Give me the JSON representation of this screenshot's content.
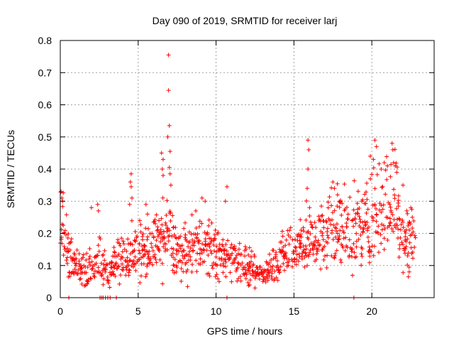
{
  "chart_data": {
    "type": "scatter",
    "title": "Day 090 of 2019, SRMTID for receiver larj",
    "xlabel": "GPS time / hours",
    "ylabel": "SRMTID / TECUs",
    "xlim": [
      0,
      24
    ],
    "ylim": [
      0,
      0.8
    ],
    "xticks": [
      0,
      5,
      10,
      15,
      20
    ],
    "xtick_labels": [
      "0",
      "5",
      "10",
      "15",
      "20"
    ],
    "yticks": [
      0,
      0.1,
      0.2,
      0.3,
      0.4,
      0.5,
      0.6,
      0.7,
      0.8
    ],
    "ytick_labels": [
      "0",
      "0.1",
      "0.2",
      "0.3",
      "0.4",
      "0.5",
      "0.6",
      "0.7",
      "0.8"
    ],
    "grid": true,
    "marker": "+",
    "color": "#ff0000",
    "x_step": 0.04,
    "series": [
      {
        "name": "SRMTID",
        "trend": [
          [
            0.0,
            0.26
          ],
          [
            0.3,
            0.2
          ],
          [
            0.6,
            0.13
          ],
          [
            1.0,
            0.1
          ],
          [
            1.5,
            0.09
          ],
          [
            2.0,
            0.09
          ],
          [
            2.5,
            0.12
          ],
          [
            3.0,
            0.08
          ],
          [
            3.5,
            0.1
          ],
          [
            4.0,
            0.12
          ],
          [
            4.5,
            0.15
          ],
          [
            5.0,
            0.14
          ],
          [
            6.0,
            0.16
          ],
          [
            6.5,
            0.19
          ],
          [
            7.0,
            0.2
          ],
          [
            7.5,
            0.14
          ],
          [
            8.0,
            0.14
          ],
          [
            9.0,
            0.17
          ],
          [
            10.0,
            0.14
          ],
          [
            10.5,
            0.13
          ],
          [
            11.0,
            0.12
          ],
          [
            12.0,
            0.1
          ],
          [
            12.5,
            0.08
          ],
          [
            13.0,
            0.07
          ],
          [
            13.5,
            0.1
          ],
          [
            14.0,
            0.12
          ],
          [
            14.5,
            0.14
          ],
          [
            15.0,
            0.16
          ],
          [
            15.5,
            0.18
          ],
          [
            16.0,
            0.17
          ],
          [
            17.0,
            0.19
          ],
          [
            17.5,
            0.24
          ],
          [
            18.0,
            0.22
          ],
          [
            19.0,
            0.2
          ],
          [
            19.5,
            0.23
          ],
          [
            20.0,
            0.25
          ],
          [
            20.5,
            0.26
          ],
          [
            21.0,
            0.28
          ],
          [
            21.5,
            0.3
          ],
          [
            22.0,
            0.2
          ],
          [
            22.8,
            0.18
          ]
        ],
        "extra_points": [
          [
            6.95,
            0.755
          ],
          [
            6.95,
            0.645
          ],
          [
            7.0,
            0.535
          ],
          [
            6.9,
            0.5
          ],
          [
            7.05,
            0.455
          ],
          [
            6.5,
            0.45
          ],
          [
            6.6,
            0.43
          ],
          [
            6.55,
            0.4
          ],
          [
            6.6,
            0.38
          ],
          [
            7.0,
            0.405
          ],
          [
            7.05,
            0.385
          ],
          [
            7.1,
            0.35
          ],
          [
            4.55,
            0.385
          ],
          [
            4.5,
            0.36
          ],
          [
            4.55,
            0.345
          ],
          [
            4.6,
            0.31
          ],
          [
            4.45,
            0.29
          ],
          [
            10.7,
            0.345
          ],
          [
            10.6,
            0.3
          ],
          [
            9.1,
            0.31
          ],
          [
            9.3,
            0.3
          ],
          [
            15.9,
            0.49
          ],
          [
            15.95,
            0.46
          ],
          [
            15.9,
            0.4
          ],
          [
            15.85,
            0.34
          ],
          [
            16.0,
            0.28
          ],
          [
            17.5,
            0.36
          ],
          [
            17.6,
            0.34
          ],
          [
            17.8,
            0.32
          ],
          [
            20.2,
            0.49
          ],
          [
            20.3,
            0.47
          ],
          [
            20.1,
            0.43
          ],
          [
            19.9,
            0.44
          ],
          [
            20.6,
            0.4
          ],
          [
            20.8,
            0.42
          ],
          [
            21.0,
            0.41
          ],
          [
            21.3,
            0.48
          ],
          [
            21.35,
            0.46
          ],
          [
            21.4,
            0.42
          ],
          [
            21.5,
            0.41
          ],
          [
            21.6,
            0.39
          ],
          [
            22.0,
            0.35
          ],
          [
            0.05,
            0.33
          ],
          [
            0.1,
            0.31
          ],
          [
            0.15,
            0.3
          ],
          [
            0.0,
            0.17
          ],
          [
            2.4,
            0.29
          ],
          [
            2.45,
            0.27
          ],
          [
            2.0,
            0.28
          ],
          [
            3.5,
            0.14
          ],
          [
            3.7,
            0.18
          ],
          [
            5.5,
            0.29
          ],
          [
            5.6,
            0.26
          ],
          [
            8.7,
            0.27
          ],
          [
            22.5,
            0.28
          ],
          [
            22.6,
            0.25
          ],
          [
            22.3,
            0.13
          ],
          [
            22.4,
            0.08
          ],
          [
            22.35,
            0.065
          ],
          [
            5.1,
            0.24
          ],
          [
            6.1,
            0.23
          ],
          [
            10.2,
            0.05
          ],
          [
            12.5,
            0.03
          ]
        ],
        "zero_points": [
          0.55,
          2.55,
          2.65,
          2.75,
          2.9,
          3.05,
          3.2,
          3.6,
          10.7,
          18.85
        ]
      }
    ]
  }
}
